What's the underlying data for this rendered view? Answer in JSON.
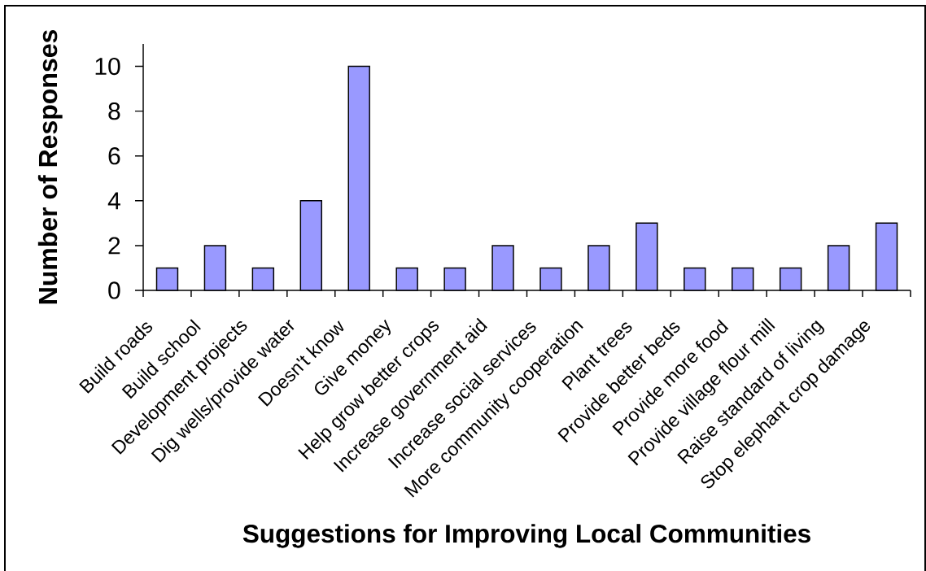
{
  "chart_data": {
    "type": "bar",
    "xlabel": "Suggestions for Improving Local Communities",
    "ylabel": "Number of Responses",
    "categories": [
      "Build roads",
      "Build school",
      "Development projects",
      "Dig wells/provide water",
      "Doesn't know",
      "Give money",
      "Help grow better crops",
      "Increase government aid",
      "Increase social services",
      "More community cooperation",
      "Plant trees",
      "Provide better beds",
      "Provide more food",
      "Provide village flour mill",
      "Raise standard of living",
      "Stop elephant crop damage"
    ],
    "values": [
      1,
      2,
      1,
      4,
      10,
      1,
      1,
      2,
      1,
      2,
      3,
      1,
      1,
      1,
      2,
      3
    ],
    "color": "#9999ff",
    "ylim": [
      0,
      11
    ],
    "yticks": [
      0,
      2,
      4,
      6,
      8,
      10
    ]
  }
}
